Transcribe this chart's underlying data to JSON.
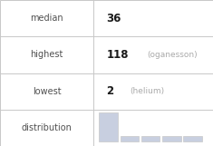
{
  "rows": [
    {
      "label": "median",
      "value": "36",
      "note": ""
    },
    {
      "label": "highest",
      "value": "118",
      "note": "oganesson"
    },
    {
      "label": "lowest",
      "value": "2",
      "note": "helium"
    },
    {
      "label": "distribution",
      "value": "",
      "note": ""
    }
  ],
  "bar_heights": [
    5,
    1,
    1,
    1,
    1
  ],
  "bar_color": "#c8cfe0",
  "border_color": "#c8c8c8",
  "text_color_label": "#505050",
  "text_color_value": "#1a1a1a",
  "text_color_note": "#aaaaaa",
  "bg_color": "#ffffff",
  "col_split": 0.44,
  "label_fs": 7.0,
  "value_fs": 8.5,
  "note_fs": 6.5
}
